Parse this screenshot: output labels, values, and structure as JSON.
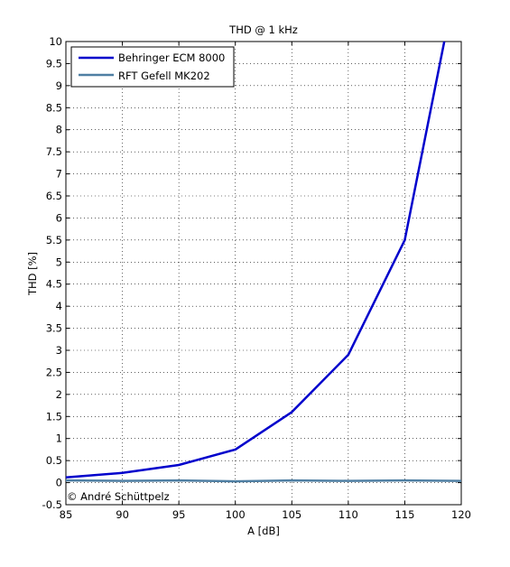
{
  "chart_data": {
    "type": "line",
    "title": "THD @ 1 kHz",
    "xlabel": "A [dB]",
    "ylabel": "THD [%]",
    "xlim": [
      85,
      120
    ],
    "ylim": [
      -0.5,
      10
    ],
    "xticks": [
      85,
      90,
      95,
      100,
      105,
      110,
      115,
      120
    ],
    "yticks": [
      -0.5,
      0,
      0.5,
      1,
      1.5,
      2,
      2.5,
      3,
      3.5,
      4,
      4.5,
      5,
      5.5,
      6,
      6.5,
      7,
      7.5,
      8,
      8.5,
      9,
      9.5,
      10
    ],
    "grid": true,
    "legend_position": "top-left",
    "series": [
      {
        "name": "Behringer ECM 8000",
        "color": "#0000cc",
        "x": [
          85,
          90,
          95,
          100,
          105,
          110,
          115,
          118.5
        ],
        "y": [
          0.12,
          0.22,
          0.4,
          0.75,
          1.6,
          2.9,
          5.5,
          10.0
        ]
      },
      {
        "name": "RFT Gefell MK202",
        "color": "#4f7fa3",
        "x": [
          85,
          90,
          95,
          100,
          105,
          110,
          115,
          120
        ],
        "y": [
          0.05,
          0.04,
          0.05,
          0.03,
          0.05,
          0.04,
          0.05,
          0.04
        ]
      }
    ],
    "annotation": "© André Schüttpelz"
  }
}
